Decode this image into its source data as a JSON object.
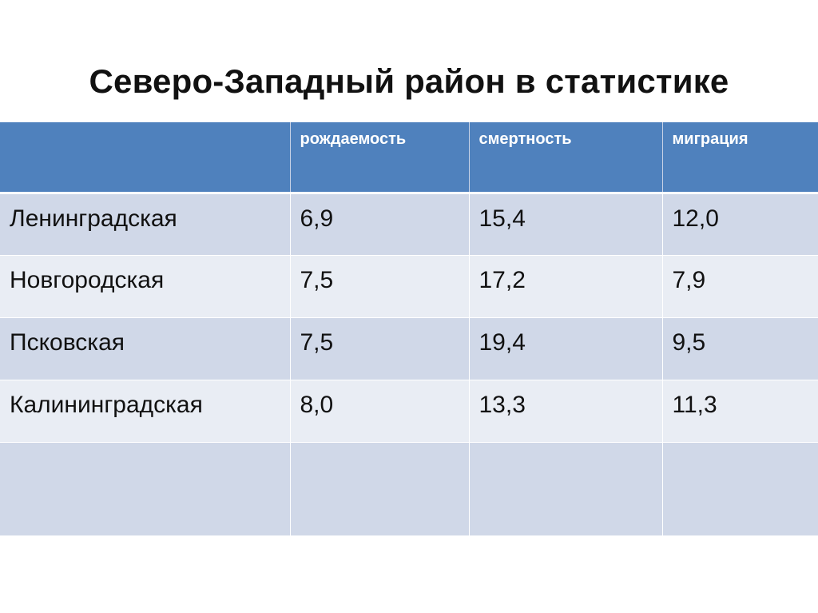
{
  "title": "Северо-Западный район в статистике",
  "table": {
    "headers": [
      "",
      "рождаемость",
      "смертность",
      "миграция"
    ],
    "rows": [
      [
        "Ленинградская",
        "6,9",
        "15,4",
        "12,0"
      ],
      [
        "Новгородская",
        "7,5",
        "17,2",
        "7,9"
      ],
      [
        "Псковская",
        "7,5",
        "19,4",
        "9,5"
      ],
      [
        "Калининградская",
        "8,0",
        "13,3",
        "11,3"
      ],
      [
        "",
        "",
        "",
        ""
      ]
    ]
  }
}
